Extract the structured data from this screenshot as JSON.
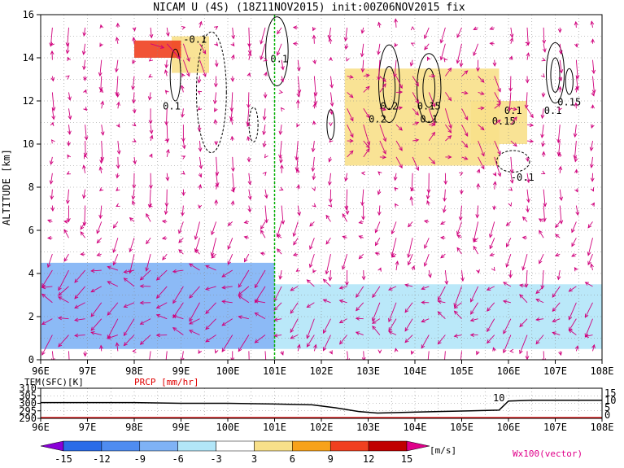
{
  "chart_data": [
    {
      "type": "heatmap",
      "title": "NICAM U (4S) (18Z11NOV2015) init:00Z06NOV2015 fix",
      "ylabel": "ALTITUDE [km]",
      "xlabel": "",
      "x_ticks": [
        "96E",
        "97E",
        "98E",
        "99E",
        "100E",
        "101E",
        "102E",
        "103E",
        "104E",
        "105E",
        "106E",
        "107E",
        "108E"
      ],
      "y_ticks": [
        "0",
        "2",
        "4",
        "6",
        "8",
        "10",
        "12",
        "14",
        "16"
      ],
      "xlim": [
        96,
        108
      ],
      "ylim": [
        0,
        16
      ],
      "grid": true,
      "vertical_line_x": 101,
      "colorbar": {
        "levels": [
          "-15",
          "-12",
          "-9",
          "-6",
          "-3",
          "3",
          "6",
          "9",
          "12",
          "15"
        ],
        "unit": "[m/s]",
        "colors": [
          "#8a00d8",
          "#2b6ce8",
          "#4f8cf0",
          "#7fb2f5",
          "#b2e6f8",
          "#ffffff",
          "#f8e08a",
          "#f7a21b",
          "#f04020",
          "#c00000",
          "#e0008a"
        ]
      },
      "vector_label": "Wx100(vector)",
      "contour_labels": [
        "-0.1",
        "0.1",
        "0.1",
        "0.2",
        "0.2",
        "0.15",
        "0.1",
        "0.1",
        "0.15",
        "0.15",
        "0.1",
        "-0.1"
      ],
      "wind_regions": [
        {
          "x": [
            96.0,
            101.0
          ],
          "z": [
            0.5,
            4.5
          ],
          "u": -7
        },
        {
          "x": [
            101.0,
            108.0
          ],
          "z": [
            0.5,
            3.5
          ],
          "u": -5
        },
        {
          "x": [
            96.0,
            108.0
          ],
          "z": [
            4.5,
            6.5
          ],
          "u": -3
        },
        {
          "x": [
            98.8,
            99.6
          ],
          "z": [
            13.3,
            15.0
          ],
          "u": 4
        },
        {
          "x": [
            98.0,
            99.0
          ],
          "z": [
            14.0,
            14.8
          ],
          "u": 9
        },
        {
          "x": [
            102.5,
            105.8
          ],
          "z": [
            9.0,
            13.5
          ],
          "u": 4
        },
        {
          "x": [
            105.2,
            106.4
          ],
          "z": [
            10.0,
            12.0
          ],
          "u": 4
        },
        {
          "x": [
            104.0,
            106.0
          ],
          "z": [
            14.5,
            16.0
          ],
          "u": -3
        },
        {
          "x": [
            100.5,
            101.8
          ],
          "z": [
            14.0,
            16.0
          ],
          "u": -3
        }
      ]
    },
    {
      "type": "line",
      "series": [
        {
          "name": "TEM(SFC)[K]",
          "x": [
            96,
            97,
            98,
            99,
            100,
            101,
            101.8,
            102.3,
            102.8,
            103.2,
            103.8,
            104.5,
            105.2,
            105.8,
            106.0,
            106.5,
            107,
            108
          ],
          "values": [
            300.5,
            300.5,
            300.5,
            300.0,
            300.0,
            299.5,
            299.0,
            297.0,
            294.5,
            293.5,
            294.0,
            294.5,
            295.0,
            295.5,
            301.5,
            302,
            302,
            302
          ]
        },
        {
          "name": "PRCP [mm/hr]",
          "x": [
            96,
            108
          ],
          "values": [
            0,
            0
          ]
        }
      ],
      "left_axis_ticks": [
        "310",
        "305",
        "300",
        "295",
        "290"
      ],
      "right_axis_ticks": [
        "15",
        "10",
        "5",
        "0"
      ],
      "x_ticks": [
        "96E",
        "97E",
        "98E",
        "99E",
        "100E",
        "101E",
        "102E",
        "103E",
        "104E",
        "105E",
        "106E",
        "107E",
        "108E"
      ],
      "annotation": "10"
    }
  ]
}
